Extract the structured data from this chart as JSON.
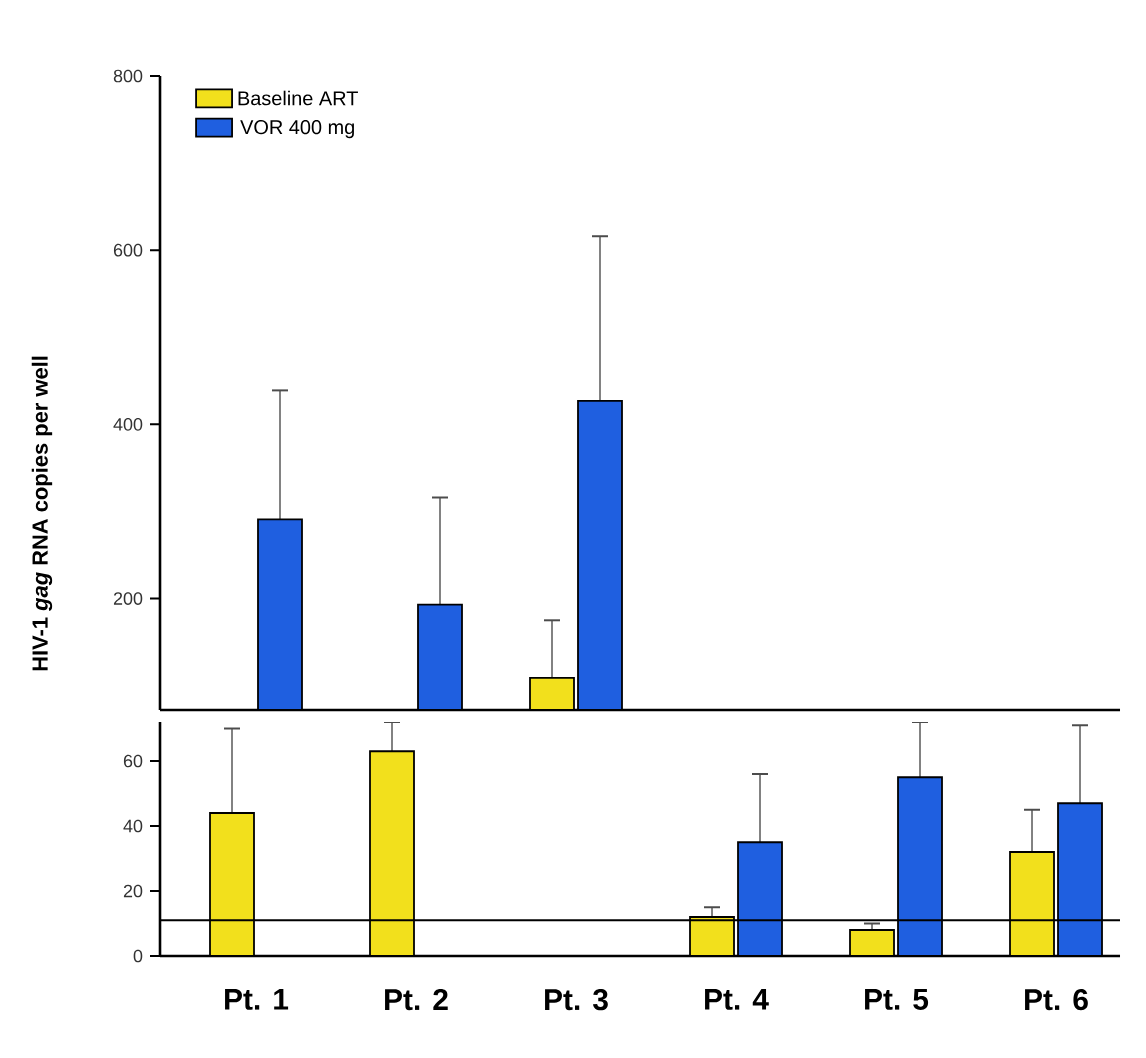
{
  "chart_data": [
    {
      "type": "bar",
      "ylabel": "HIV-1 *gag* RNA copies per well",
      "categories": [
        null,
        null,
        null,
        null,
        null,
        null
      ],
      "series": [
        {
          "name": "Baseline ART",
          "color": "#f2e01c",
          "values": [
            null,
            null,
            109,
            null,
            null,
            null
          ],
          "errors": [
            null,
            null,
            66,
            null,
            null,
            null
          ]
        },
        {
          "name": "VOR 400 mg",
          "color": "#1f5fe0",
          "values": [
            291,
            193,
            427,
            null,
            null,
            null
          ],
          "errors": [
            148,
            123,
            189,
            null,
            null,
            null
          ]
        }
      ],
      "ylim": [
        72,
        800
      ],
      "yticks": [
        200,
        400,
        600,
        800
      ],
      "tick_labels": "y",
      "legend": "top left"
    },
    {
      "type": "bar",
      "categories": [
        "Pt. 1",
        "Pt. 2",
        "Pt. 3",
        "Pt. 4",
        "Pt. 5",
        "Pt. 6"
      ],
      "series": [
        {
          "color": "#f2e01c",
          "values": [
            44,
            63,
            null,
            12,
            8,
            32
          ],
          "errors": [
            26,
            9,
            null,
            3,
            2,
            13
          ]
        },
        {
          "color": "#1f5fe0",
          "values": [
            null,
            null,
            null,
            35,
            55,
            47
          ],
          "errors": [
            null,
            null,
            null,
            21,
            17,
            24
          ]
        }
      ],
      "ylim": [
        0,
        72
      ],
      "yticks": [
        0,
        20,
        40,
        60
      ],
      "ref_lines": [
        {
          "axis": "y",
          "value": 11
        }
      ]
    }
  ]
}
